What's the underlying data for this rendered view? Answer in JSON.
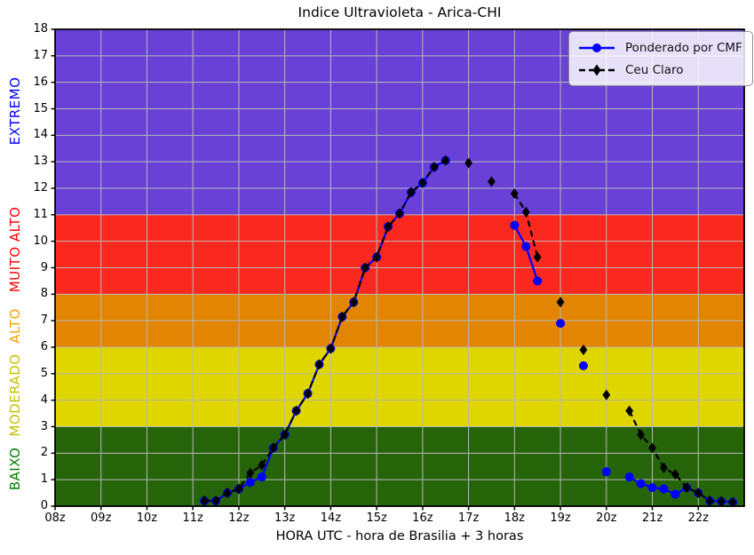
{
  "figure": {
    "title": "Indice Ultravioleta - Arica-CHI",
    "xlabel": "HORA UTC - hora de Brasilia + 3 horas"
  },
  "chart_data": {
    "type": "line",
    "title": "Indice Ultravioleta - Arica-CHI",
    "xlabel": "HORA UTC - hora de Brasilia + 3 horas",
    "ylabel": "",
    "xlim": [
      8,
      23
    ],
    "ylim": [
      0,
      18
    ],
    "grid": true,
    "grid_color": "#b9b9b9",
    "legend_position": "upper right",
    "x_ticks": [
      {
        "value": 8,
        "label": "08z"
      },
      {
        "value": 9,
        "label": "09z"
      },
      {
        "value": 10,
        "label": "10z"
      },
      {
        "value": 11,
        "label": "11z"
      },
      {
        "value": 12,
        "label": "12z"
      },
      {
        "value": 13,
        "label": "13z"
      },
      {
        "value": 14,
        "label": "14z"
      },
      {
        "value": 15,
        "label": "15z"
      },
      {
        "value": 16,
        "label": "16z"
      },
      {
        "value": 17,
        "label": "17z"
      },
      {
        "value": 18,
        "label": "18z"
      },
      {
        "value": 19,
        "label": "19z"
      },
      {
        "value": 20,
        "label": "20z"
      },
      {
        "value": 21,
        "label": "21z"
      },
      {
        "value": 22,
        "label": "22z"
      }
    ],
    "y_ticks": [
      0,
      1,
      2,
      3,
      4,
      5,
      6,
      7,
      8,
      9,
      10,
      11,
      12,
      13,
      14,
      15,
      16,
      17,
      18
    ],
    "bands": [
      {
        "label": "BAIXO",
        "from": 0,
        "to": 3,
        "color": "#26640a",
        "label_color": "#008000",
        "label_center": 1.4
      },
      {
        "label": "MODERADO",
        "from": 3,
        "to": 6,
        "color": "#dfd600",
        "label_color": "#c3c300",
        "label_center": 4.2
      },
      {
        "label": "ALTO",
        "from": 6,
        "to": 8,
        "color": "#e18502",
        "label_color": "#ffa500",
        "label_center": 6.8
      },
      {
        "label": "MUITO ALTO",
        "from": 8,
        "to": 11,
        "color": "#fa281e",
        "label_color": "#ff0000",
        "label_center": 9.7
      },
      {
        "label": "EXTREMO",
        "from": 11,
        "to": 18,
        "color": "#6941d7",
        "label_color": "#0000ff",
        "label_center": 14.9
      }
    ],
    "series": [
      {
        "name": "Ponderado por CMF",
        "color": "#0000ff",
        "line_style": "solid",
        "marker": "circle",
        "segments": [
          [
            [
              11.25,
              0.2
            ],
            [
              11.5,
              0.2
            ],
            [
              11.75,
              0.5
            ],
            [
              12,
              0.65
            ],
            [
              12.25,
              0.9
            ],
            [
              12.5,
              1.1
            ],
            [
              12.75,
              2.2
            ],
            [
              13,
              2.7
            ],
            [
              13.25,
              3.6
            ],
            [
              13.5,
              4.25
            ],
            [
              13.75,
              5.35
            ],
            [
              14,
              5.95
            ],
            [
              14.25,
              7.15
            ],
            [
              14.5,
              7.7
            ],
            [
              14.75,
              9
            ],
            [
              15,
              9.4
            ],
            [
              15.25,
              10.55
            ],
            [
              15.5,
              11.05
            ],
            [
              15.75,
              11.85
            ],
            [
              16,
              12.2
            ],
            [
              16.25,
              12.8
            ],
            [
              16.5,
              13.05
            ]
          ],
          [
            [
              18,
              10.6
            ],
            [
              18.25,
              9.8
            ],
            [
              18.5,
              8.5
            ]
          ],
          [
            [
              19,
              6.9
            ]
          ],
          [
            [
              19.5,
              5.3
            ]
          ],
          [
            [
              20,
              1.3
            ]
          ],
          [
            [
              20.5,
              1.1
            ],
            [
              20.75,
              0.85
            ],
            [
              21,
              0.7
            ],
            [
              21.25,
              0.65
            ],
            [
              21.5,
              0.45
            ],
            [
              21.75,
              0.7
            ],
            [
              22,
              0.5
            ],
            [
              22.25,
              0.2
            ],
            [
              22.5,
              0.18
            ],
            [
              22.75,
              0.15
            ]
          ]
        ]
      },
      {
        "name": "Ceu Claro",
        "color": "#000000",
        "line_style": "dashed",
        "marker": "diamond",
        "segments": [
          [
            [
              11.25,
              0.2
            ],
            [
              11.5,
              0.2
            ],
            [
              11.75,
              0.5
            ],
            [
              12,
              0.65
            ],
            [
              12.25,
              1.25
            ],
            [
              12.5,
              1.55
            ],
            [
              12.75,
              2.2
            ],
            [
              13,
              2.7
            ],
            [
              13.25,
              3.6
            ],
            [
              13.5,
              4.25
            ],
            [
              13.75,
              5.35
            ],
            [
              14,
              5.95
            ],
            [
              14.25,
              7.15
            ],
            [
              14.5,
              7.7
            ],
            [
              14.75,
              9
            ],
            [
              15,
              9.4
            ],
            [
              15.25,
              10.55
            ],
            [
              15.5,
              11.05
            ],
            [
              15.75,
              11.85
            ],
            [
              16,
              12.2
            ],
            [
              16.25,
              12.8
            ],
            [
              16.5,
              13.05
            ]
          ],
          [
            [
              17,
              12.95
            ]
          ],
          [
            [
              17.5,
              12.25
            ]
          ],
          [
            [
              18,
              11.8
            ],
            [
              18.25,
              11.1
            ],
            [
              18.5,
              9.4
            ]
          ],
          [
            [
              19,
              7.7
            ]
          ],
          [
            [
              19.5,
              5.9
            ]
          ],
          [
            [
              20,
              4.2
            ]
          ],
          [
            [
              20.5,
              3.6
            ],
            [
              20.75,
              2.7
            ],
            [
              21,
              2.2
            ],
            [
              21.25,
              1.45
            ],
            [
              21.5,
              1.2
            ],
            [
              21.75,
              0.7
            ],
            [
              22,
              0.5
            ],
            [
              22.25,
              0.2
            ],
            [
              22.5,
              0.18
            ],
            [
              22.75,
              0.15
            ]
          ]
        ]
      }
    ]
  }
}
